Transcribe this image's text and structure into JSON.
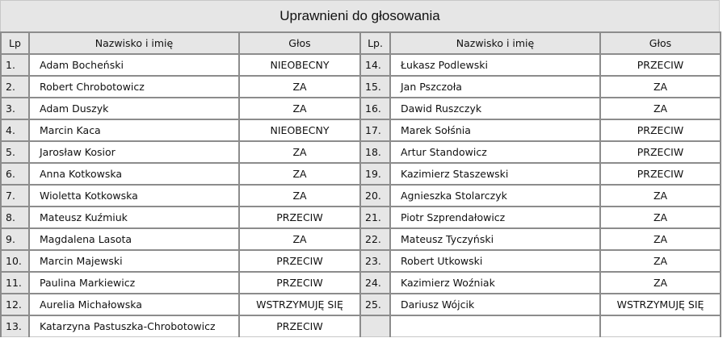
{
  "title": "Uprawnieni do głosowania",
  "headers_left": {
    "lp": "Lp",
    "name": "Nazwisko i imię",
    "vote": "Głos"
  },
  "headers_right": {
    "lp": "Lp.",
    "name": "Nazwisko i imię",
    "vote": "Głos"
  },
  "left": [
    {
      "lp": "1.",
      "name": "Adam Bocheński",
      "vote": "NIEOBECNY"
    },
    {
      "lp": "2.",
      "name": "Robert Chrobotowicz",
      "vote": "ZA"
    },
    {
      "lp": "3.",
      "name": "Adam Duszyk",
      "vote": "ZA"
    },
    {
      "lp": "4.",
      "name": "Marcin Kaca",
      "vote": "NIEOBECNY"
    },
    {
      "lp": "5.",
      "name": "Jarosław Kosior",
      "vote": "ZA"
    },
    {
      "lp": "6.",
      "name": "Anna Kotkowska",
      "vote": "ZA"
    },
    {
      "lp": "7.",
      "name": "Wioletta Kotkowska",
      "vote": "ZA"
    },
    {
      "lp": "8.",
      "name": "Mateusz Kuźmiuk",
      "vote": "PRZECIW"
    },
    {
      "lp": "9.",
      "name": "Magdalena Lasota",
      "vote": "ZA"
    },
    {
      "lp": "10.",
      "name": "Marcin Majewski",
      "vote": "PRZECIW"
    },
    {
      "lp": "11.",
      "name": "Paulina Markiewicz",
      "vote": "PRZECIW"
    },
    {
      "lp": "12.",
      "name": "Aurelia Michałowska",
      "vote": "WSTRZYMUJĘ SIĘ"
    },
    {
      "lp": "13.",
      "name": "Katarzyna Pastuszka-Chrobotowicz",
      "vote": "PRZECIW"
    }
  ],
  "right": [
    {
      "lp": "14.",
      "name": "Łukasz Podlewski",
      "vote": "PRZECIW"
    },
    {
      "lp": "15.",
      "name": "Jan Pszczoła",
      "vote": "ZA"
    },
    {
      "lp": "16.",
      "name": "Dawid Ruszczyk",
      "vote": "ZA"
    },
    {
      "lp": "17.",
      "name": "Marek Sołśnia",
      "vote": "PRZECIW"
    },
    {
      "lp": "18.",
      "name": "Artur Standowicz",
      "vote": "PRZECIW"
    },
    {
      "lp": "19.",
      "name": "Kazimierz Staszewski",
      "vote": "PRZECIW"
    },
    {
      "lp": "20.",
      "name": "Agnieszka Stolarczyk",
      "vote": "ZA"
    },
    {
      "lp": "21.",
      "name": "Piotr Szprendałowicz",
      "vote": "ZA"
    },
    {
      "lp": "22.",
      "name": "Mateusz Tyczyński",
      "vote": "ZA"
    },
    {
      "lp": "23.",
      "name": "Robert Utkowski",
      "vote": "ZA"
    },
    {
      "lp": "24.",
      "name": "Kazimierz Woźniak",
      "vote": "ZA"
    },
    {
      "lp": "25.",
      "name": "Dariusz Wójcik",
      "vote": "WSTRZYMUJĘ SIĘ"
    },
    {
      "lp": "",
      "name": "",
      "vote": ""
    }
  ]
}
